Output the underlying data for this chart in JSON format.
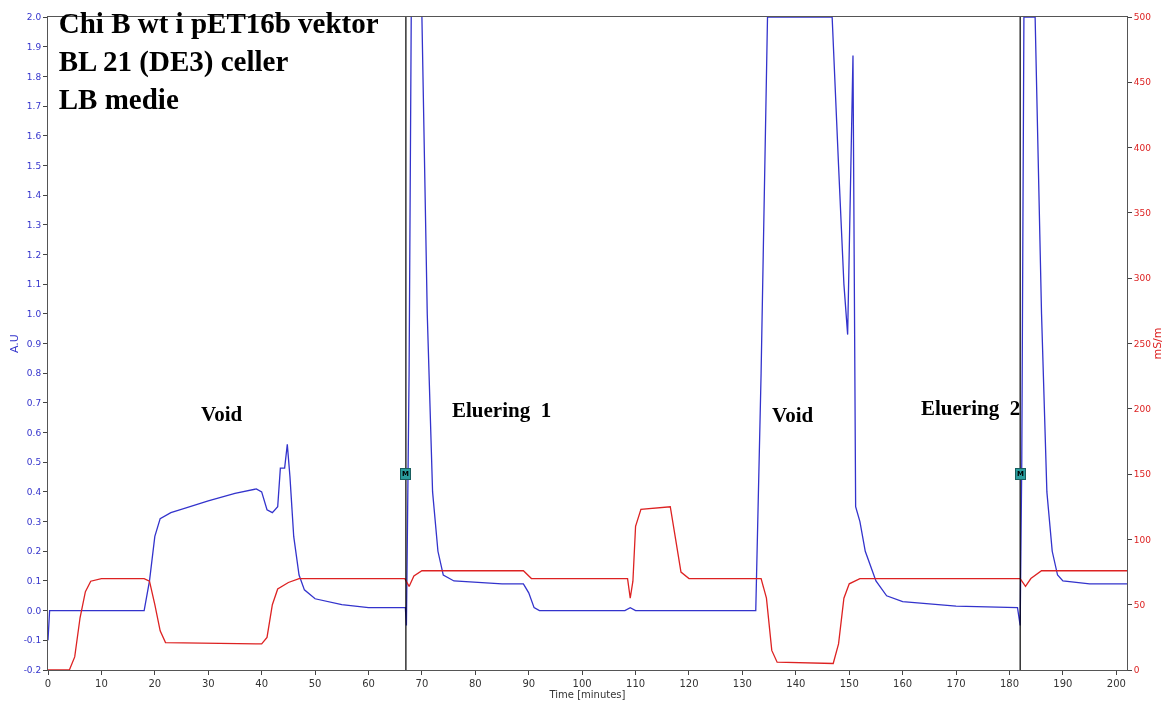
{
  "chart_data": {
    "type": "line",
    "title": "Chi B wt i pET16b vektor\nBL 21 (DE3) celler\nLB medie",
    "xlabel": "Time [minutes]",
    "ylabel": "A.U",
    "y2label": "mS/m",
    "series": [
      {
        "color": "#3333cc",
        "x": [
          0,
          0.3,
          0.6,
          18,
          19,
          20,
          21,
          23,
          30,
          35,
          39,
          40,
          41,
          42,
          43,
          43.5,
          44.3,
          44.8,
          45.3,
          46,
          47,
          48,
          50,
          55,
          60,
          66.9,
          67.1,
          67.6,
          68,
          68.3,
          70,
          71,
          72,
          73,
          74,
          76,
          85,
          89,
          90,
          91,
          92,
          108,
          109,
          110,
          132.5,
          133.5,
          134.7,
          146.8,
          148,
          149,
          149.7,
          150.2,
          150.7,
          151.2,
          152,
          153,
          155,
          157,
          160,
          170,
          181.5,
          182,
          182.3,
          182.7,
          184.8,
          186,
          187,
          188,
          189,
          190,
          195,
          202
        ],
        "values": [
          -0.1,
          0.0,
          0.0,
          0.0,
          0.1,
          0.25,
          0.31,
          0.33,
          0.37,
          0.395,
          0.41,
          0.4,
          0.34,
          0.33,
          0.35,
          0.48,
          0.48,
          0.56,
          0.45,
          0.25,
          0.12,
          0.07,
          0.04,
          0.02,
          0.01,
          0.01,
          -0.05,
          0.8,
          2.0,
          null,
          2.0,
          1.0,
          0.4,
          0.2,
          0.12,
          0.1,
          0.09,
          0.09,
          0.06,
          0.01,
          0.0,
          0.0,
          0.01,
          0.0,
          0.0,
          0.8,
          2.0,
          2.0,
          1.5,
          1.1,
          0.93,
          1.4,
          1.87,
          0.35,
          0.3,
          0.2,
          0.1,
          0.05,
          0.03,
          0.015,
          0.01,
          -0.05,
          0.5,
          2.0,
          2.0,
          1.0,
          0.4,
          0.2,
          0.12,
          0.1,
          0.09,
          0.09
        ]
      },
      {
        "color": "#dd2222",
        "axis": "y2",
        "x": [
          0,
          4,
          5,
          6,
          7,
          8,
          10,
          18,
          19,
          20,
          21,
          22,
          40,
          41,
          42,
          43,
          45,
          47,
          66.8,
          67.6,
          68.5,
          70,
          89,
          90.5,
          108.5,
          109,
          109.5,
          110,
          111,
          116.5,
          117.5,
          118.5,
          120,
          133.5,
          134.5,
          135.5,
          136.5,
          147,
          148,
          149,
          150,
          152,
          182,
          183,
          184,
          186,
          202
        ],
        "values": [
          0,
          0,
          10,
          40,
          60,
          68,
          70,
          70,
          68,
          50,
          30,
          21,
          20,
          25,
          50,
          62,
          67,
          70,
          70,
          64,
          72,
          76,
          76,
          70,
          70,
          55,
          68,
          110,
          123,
          125,
          100,
          75,
          70,
          70,
          55,
          15,
          6,
          5,
          20,
          55,
          66,
          70,
          70,
          64,
          70,
          76,
          76
        ]
      }
    ],
    "xlim": [
      0,
      202
    ],
    "xticks": [
      0,
      10,
      20,
      30,
      40,
      50,
      60,
      70,
      80,
      90,
      100,
      110,
      120,
      130,
      140,
      150,
      160,
      170,
      180,
      190,
      200
    ],
    "ylim": [
      -0.2,
      2.0
    ],
    "yticks": [
      -0.2,
      -0.1,
      {
        "value": 0,
        "label": "0.0"
      },
      0.1,
      0.2,
      0.3,
      0.4,
      0.5,
      0.6,
      0.7,
      0.8,
      0.9,
      {
        "value": 1,
        "label": "1.0"
      },
      1.1,
      1.2,
      1.3,
      1.4,
      1.5,
      1.6,
      1.7,
      1.8,
      1.9,
      {
        "value": 2,
        "label": "2.0"
      }
    ],
    "y2lim": [
      0,
      500
    ],
    "y2ticks": [
      0,
      50,
      100,
      150,
      200,
      250,
      300,
      350,
      400,
      450,
      500
    ],
    "ref_lines": [
      {
        "axis": "x",
        "value": 67,
        "color": "#000000"
      },
      {
        "axis": "x",
        "value": 182,
        "color": "#000000"
      }
    ],
    "annotations": [
      "Void",
      "Eluering  1",
      "Void",
      "Eluering  2",
      {
        "text": "M",
        "x": 67,
        "y": 0.46
      },
      {
        "text": "M",
        "x": 182,
        "y": 0.46
      }
    ],
    "marker": "none",
    "line_style": "solid"
  }
}
